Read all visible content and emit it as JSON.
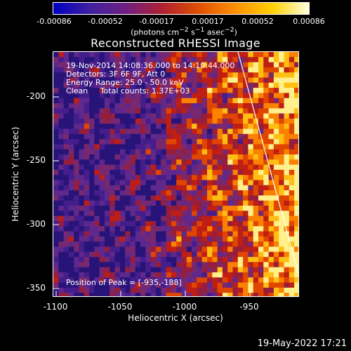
{
  "colorbar": {
    "ticks": [
      "-0.00086",
      "-0.00052",
      "-0.00017",
      "0.00017",
      "0.00052",
      "0.00086"
    ],
    "units_html": "(photons cm<sup>−2</sup> s<sup>−1</sup> asec<sup>−2</sup>)",
    "colors": [
      "#0000c0",
      "#4020a0",
      "#702080",
      "#b02030",
      "#e05000",
      "#ff9000",
      "#ffd000",
      "#ffffe0"
    ]
  },
  "title": "Reconstructed RHESSI Image",
  "annotations": {
    "line1": "19-Nov-2014 14:08:36.000 to 14:10:44.000",
    "line2": "Detectors: 3F 6F 9F, Att 0",
    "line3": "Energy Range: 25.0 - 50.0 keV",
    "line4": "Clean     Total counts: 1.37E+03",
    "peak": "Position of Peak = [-935,-188]"
  },
  "axes": {
    "xlabel": "Heliocentric X (arcsec)",
    "ylabel": "Heliocentric Y (arcsec)",
    "xticks": [
      "-1100",
      "-1050",
      "-1000",
      "-950"
    ],
    "yticks": [
      "-200",
      "-250",
      "-300",
      "-350"
    ],
    "xlim": [
      -1100,
      -910
    ],
    "ylim": [
      -357,
      -170
    ]
  },
  "datestamp": "19-May-2022 17:21"
}
